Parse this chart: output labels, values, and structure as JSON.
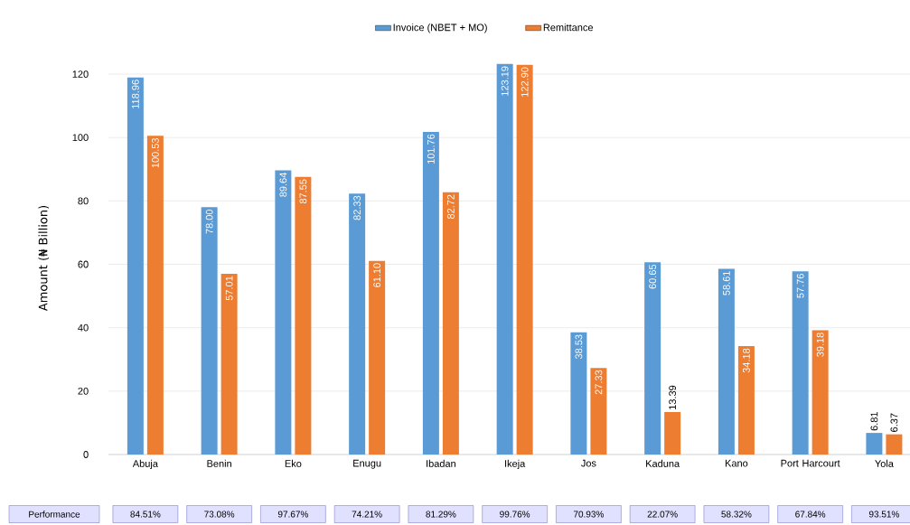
{
  "chart_data": {
    "type": "bar",
    "ylabel": "Amount (₦ Billion)",
    "categories": [
      "Abuja",
      "Benin",
      "Eko",
      "Enugu",
      "Ibadan",
      "Ikeja",
      "Jos",
      "Kaduna",
      "Kano",
      "Port Harcourt",
      "Yola"
    ],
    "series": [
      {
        "name": "Invoice (NBET + MO)",
        "color": "#5b9bd5",
        "values": [
          118.96,
          78.0,
          89.64,
          82.33,
          101.76,
          123.19,
          38.53,
          60.65,
          58.61,
          57.76,
          6.81
        ],
        "value_labels": [
          "118.96",
          "78.00",
          "89.64",
          "82.33",
          "101.76",
          "123.19",
          "38.53",
          "60.65",
          "58.61",
          "57.76",
          "6.81"
        ]
      },
      {
        "name": "Remittance",
        "color": "#ed7d31",
        "values": [
          100.53,
          57.01,
          87.55,
          61.1,
          82.72,
          122.9,
          27.33,
          13.39,
          34.18,
          39.18,
          6.37
        ],
        "value_labels": [
          "100.53",
          "57.01",
          "87.55",
          "61.10",
          "82.72",
          "122.90",
          "27.33",
          "13.39",
          "34.18",
          "39.18",
          "6.37"
        ]
      }
    ],
    "ylim": [
      0,
      124
    ],
    "yticks": [
      0,
      20,
      40,
      60,
      80,
      100,
      120
    ],
    "grid": "y",
    "legend": "top",
    "annotations": [
      "Performance",
      "84.51%",
      "73.08%",
      "97.67%",
      "74.21%",
      "81.29%",
      "99.76%",
      "70.93%",
      "22.07%",
      "58.32%",
      "67.84%",
      "93.51%"
    ]
  }
}
